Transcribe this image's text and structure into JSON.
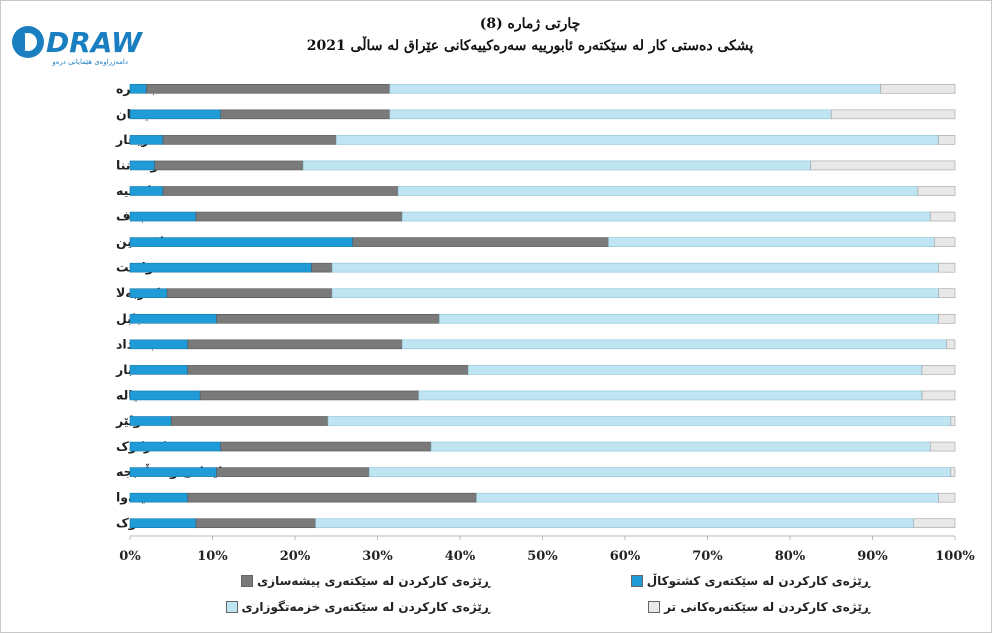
{
  "logo": {
    "text": "DRAW",
    "tagline": "دامەزراوەی هێمایانی درەو"
  },
  "title": {
    "line1": "چارتی ژمارە (8)",
    "line2": "پشکی دەستی کار لە سێکتەرە ئابورییە سەرەکییەکانی عێراق لە ساڵی 2021"
  },
  "colors": {
    "agriculture": "#1f9bd7",
    "industry": "#7a7a7a",
    "services": "#bfe4f2",
    "other": "#e8e8e8"
  },
  "chart_data": {
    "type": "bar",
    "orientation": "horizontal",
    "stacked": "percent",
    "categories": [
      "بەسرە",
      "میسان",
      "زیقار",
      "موسەننا",
      "قادسیە",
      "نەجەف",
      "سەلاحەدین",
      "واست",
      "کەربەلا",
      "بابل",
      "بەغداد",
      "ئەنبار",
      "دیالە",
      "هەولێر",
      "کەرکوک",
      "سلێمانی و هەڵەبجە",
      "نەینەوا",
      "دهۆک"
    ],
    "series": [
      {
        "name": "ڕێژەی کارکردن لە سێکتەری کشتوکاڵ",
        "values": [
          2,
          11,
          4,
          3,
          4,
          8,
          27,
          22,
          4.5,
          10.5,
          7,
          7,
          8.5,
          5,
          11,
          10.5,
          7,
          8
        ]
      },
      {
        "name": "ڕێژەی کارکردن لە سێکتەری پیشەسازی",
        "values": [
          29.5,
          20.5,
          21,
          18,
          28.5,
          25,
          31,
          2.5,
          20,
          27,
          26,
          34,
          26.5,
          19,
          25.5,
          18.5,
          35,
          14.5
        ]
      },
      {
        "name": "ڕێژەی کارکردن لە سێکتەری خزمەتگوزاری",
        "values": [
          59.5,
          53.5,
          73,
          61.5,
          63,
          64,
          39.5,
          73.5,
          73.5,
          60.5,
          66,
          55,
          61,
          75.5,
          60.5,
          70.5,
          56,
          72.5
        ]
      },
      {
        "name": "ڕێژەی کارکردن لە سێکتەرەکانی تر",
        "values": [
          9,
          15,
          2,
          17.5,
          4.5,
          3,
          2.5,
          2,
          2,
          2,
          1,
          4,
          4,
          0.5,
          3,
          0.5,
          2,
          5
        ]
      }
    ],
    "xlim": [
      0,
      100
    ],
    "xticks": [
      "0%",
      "10%",
      "20%",
      "30%",
      "40%",
      "50%",
      "60%",
      "70%",
      "80%",
      "90%",
      "100%"
    ],
    "legend_position": "bottom",
    "grid": false
  }
}
